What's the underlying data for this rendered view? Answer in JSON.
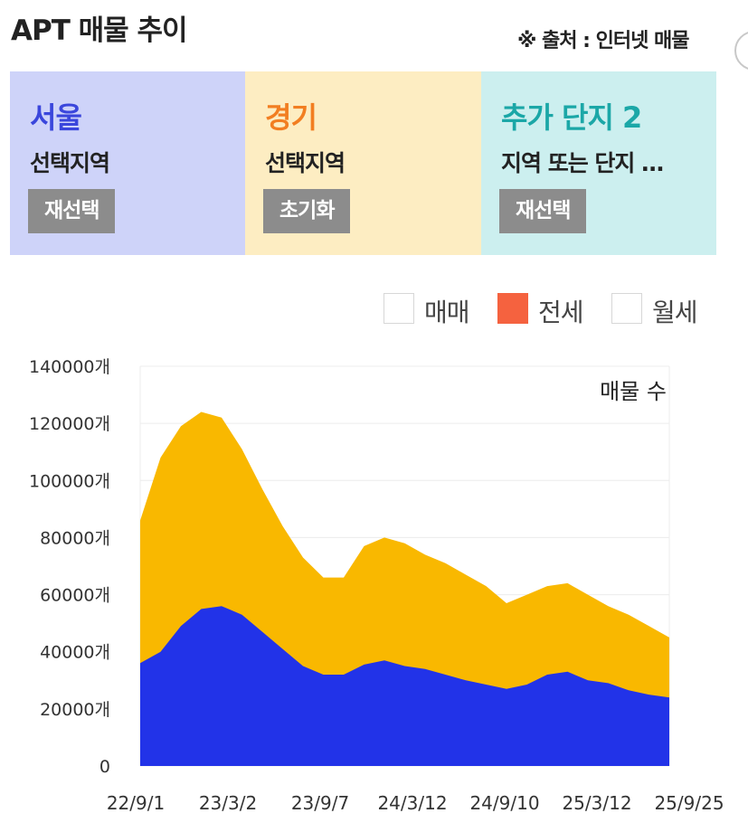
{
  "header": {
    "title": "APT 매물 추이",
    "source": "※ 출처 : 인터넷 매물"
  },
  "panels": [
    {
      "title": "서울",
      "subtitle": "선택지역",
      "button": "재선택"
    },
    {
      "title": "경기",
      "subtitle": "선택지역",
      "button": "초기화"
    },
    {
      "title": "추가 단지 2",
      "subtitle": "지역 또는 단지 …",
      "button": "재선택"
    }
  ],
  "legend": [
    {
      "label": "매매",
      "checked": false,
      "color": "#ffffff"
    },
    {
      "label": "전세",
      "checked": true,
      "color": "#f5623f"
    },
    {
      "label": "월세",
      "checked": false,
      "color": "#ffffff"
    }
  ],
  "chart_data": {
    "type": "area",
    "stacked": true,
    "title": "매물 수",
    "ylim": [
      0,
      140000
    ],
    "y_ticks": [
      "140000개",
      "120000개",
      "100000개",
      "80000개",
      "60000개",
      "40000개",
      "20000개",
      "0"
    ],
    "x_tick_labels": [
      "22/9/1",
      "23/3/2",
      "23/9/7",
      "24/3/12",
      "24/9/10",
      "25/3/12",
      "25/9/25"
    ],
    "grid": true,
    "series_colors": [
      "#2233e8",
      "#f9b800"
    ],
    "x": [
      "22/9/1",
      "22/10/15",
      "22/11/15",
      "22/12/15",
      "23/1/15",
      "23/3/2",
      "23/4/15",
      "23/6/1",
      "23/7/15",
      "23/9/7",
      "23/10/15",
      "23/11/15",
      "23/12/15",
      "24/1/15",
      "24/3/12",
      "24/5/1",
      "24/6/15",
      "24/8/1",
      "24/9/10",
      "24/10/15",
      "24/12/1",
      "25/1/15",
      "25/3/12",
      "25/5/1",
      "25/6/15",
      "25/8/1",
      "25/9/25"
    ],
    "series": [
      {
        "values": [
          36000,
          40000,
          49000,
          55000,
          56000,
          53000,
          47000,
          41000,
          35000,
          32000,
          32000,
          35500,
          37000,
          35000,
          34000,
          32000,
          30000,
          28500,
          27000,
          28500,
          32000,
          33000,
          30000,
          29000,
          26500,
          25000,
          24000
        ]
      },
      {
        "values": [
          50000,
          68000,
          70000,
          69000,
          66000,
          58000,
          50000,
          43000,
          38000,
          34000,
          34000,
          41500,
          43000,
          43000,
          40000,
          39000,
          37000,
          34500,
          30000,
          31500,
          31000,
          31000,
          30000,
          27000,
          26500,
          24000,
          21000
        ]
      }
    ]
  }
}
